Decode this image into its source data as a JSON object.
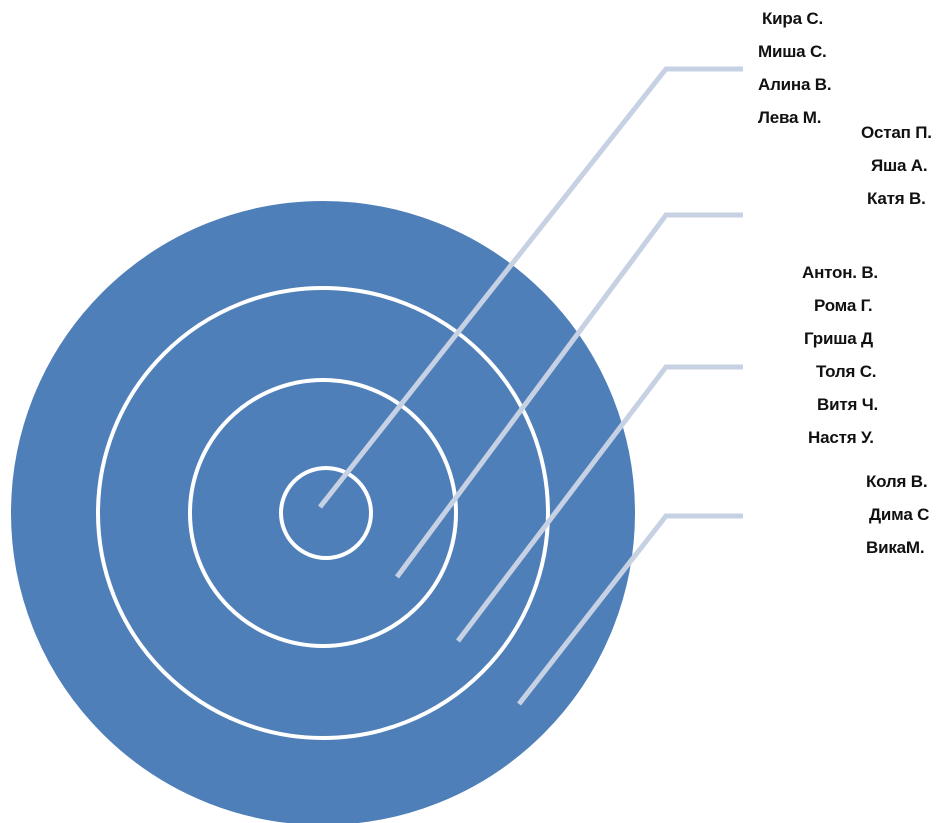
{
  "diagram": {
    "colors": {
      "target_fill": "#4f7fb9",
      "ring_stroke": "#ffffff",
      "leader": "#c7d1e4",
      "text": "#111111"
    },
    "groups": [
      {
        "names": [
          "Кира С.",
          "Миша С.",
          "Алина В.",
          "Лева М."
        ]
      },
      {
        "names": [
          "Остап П.",
          "Яша А.",
          "Катя В."
        ]
      },
      {
        "names": [
          "Антон. В.",
          "Рома Г.",
          "Гриша  Д",
          "Толя С.",
          "Витя Ч.",
          "Настя У."
        ]
      },
      {
        "names": [
          "Коля В.",
          "Дима С",
          "ВикаМ."
        ]
      }
    ]
  }
}
